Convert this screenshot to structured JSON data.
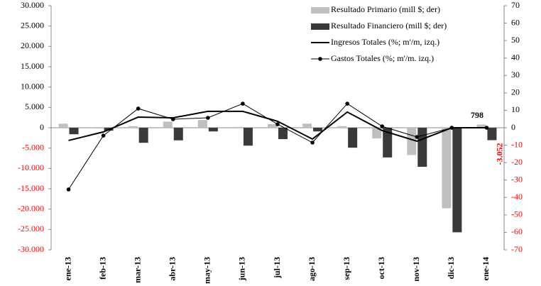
{
  "chart_data": {
    "type": "bar",
    "categories": [
      "ene-13",
      "feb-13",
      "mar-13",
      "abr-13",
      "may-13",
      "jun-13",
      "jul-13",
      "ago-13",
      "sep-13",
      "oct-13",
      "nov-13",
      "dic-13",
      "ene-14"
    ],
    "series": [
      {
        "name": "Resultado Primario  (mill $; der)",
        "type": "bar",
        "color": "#bfbfbf",
        "values": [
          1000,
          -200,
          400,
          1500,
          1900,
          200,
          900,
          1000,
          400,
          -2600,
          -6700,
          -19800,
          798
        ],
        "value_labels": [
          null,
          null,
          null,
          null,
          null,
          null,
          null,
          null,
          null,
          null,
          null,
          null,
          "798"
        ]
      },
      {
        "name": "Resultado Financiero (mill $; der)",
        "type": "bar",
        "color": "#3a3a3a",
        "values": [
          -1600,
          -700,
          -3700,
          -3100,
          -900,
          -4400,
          -2800,
          -900,
          -4900,
          -7300,
          -9600,
          -25700,
          -3052
        ],
        "value_labels": [
          null,
          null,
          null,
          null,
          null,
          null,
          null,
          null,
          null,
          null,
          null,
          null,
          "-3.052"
        ]
      },
      {
        "name": "Ingresos Totales (%; m'/m, izq.)",
        "type": "line",
        "axis": "y2",
        "color": "#000000",
        "values": [
          -7.3,
          -2.4,
          6.1,
          5.7,
          9.4,
          9.4,
          3.7,
          -6.5,
          9.0,
          -1.6,
          -7.7,
          0,
          0
        ]
      },
      {
        "name": "Gastos Totales (%; m'/m. izq.)",
        "type": "line",
        "axis": "y2",
        "color": "#000000",
        "markers": true,
        "values": [
          -35.4,
          -4.5,
          11.0,
          4.9,
          5.7,
          13.8,
          2.0,
          -8.5,
          13.8,
          0.8,
          -5.3,
          0,
          0
        ]
      }
    ],
    "ylim": [
      -30000,
      30000
    ],
    "yticks": [
      {
        "value": -30000,
        "label": "-30.000"
      },
      {
        "value": -25000,
        "label": "-25.000"
      },
      {
        "value": -20000,
        "label": "-20.000"
      },
      {
        "value": -15000,
        "label": "-15.000"
      },
      {
        "value": -10000,
        "label": "-10.000"
      },
      {
        "value": -5000,
        "label": "-5.000"
      },
      0,
      {
        "value": 5000,
        "label": "5.000"
      },
      {
        "value": 10000,
        "label": "10.000"
      },
      {
        "value": 15000,
        "label": "15.000"
      },
      {
        "value": 20000,
        "label": "20.000"
      },
      {
        "value": 25000,
        "label": "25.000"
      },
      {
        "value": 30000,
        "label": "30.000"
      }
    ],
    "y2lim": [
      -70,
      70
    ],
    "y2ticks": [
      -70,
      -60,
      -50,
      -40,
      -30,
      -20,
      -10,
      0,
      10,
      20,
      30,
      40,
      50,
      60,
      70
    ],
    "negative_tick_color": "#ff0000",
    "legend": "upper right"
  }
}
